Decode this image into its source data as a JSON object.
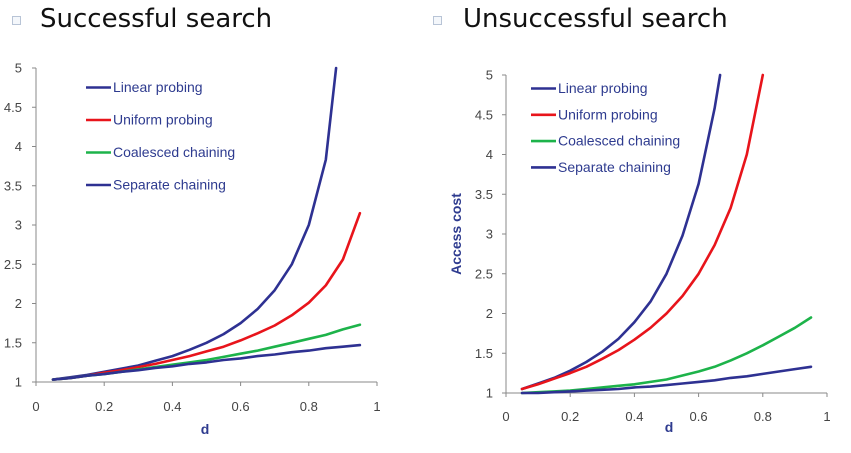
{
  "header": {
    "left_title": "Successful search",
    "right_title": "Unsuccessful search"
  },
  "chart_data": [
    {
      "type": "line",
      "title": "Successful search",
      "xlabel": "d",
      "ylabel": "",
      "xlim": [
        0,
        1
      ],
      "ylim": [
        1,
        5
      ],
      "xticks": [
        "0",
        "0.2",
        "0.4",
        "0.6",
        "0.8",
        "1"
      ],
      "yticks": [
        "1",
        "1.5",
        "2",
        "2.5",
        "3",
        "3.5",
        "4",
        "4.5",
        "5"
      ],
      "x": [
        0.05,
        0.1,
        0.15,
        0.2,
        0.25,
        0.3,
        0.35,
        0.4,
        0.45,
        0.5,
        0.55,
        0.6,
        0.65,
        0.7,
        0.75,
        0.8,
        0.85,
        0.9,
        0.95
      ],
      "legend_position": "top-left",
      "series": [
        {
          "name": "Linear probing",
          "color": "#2e3192",
          "x": [
            0.05,
            0.1,
            0.15,
            0.2,
            0.25,
            0.3,
            0.35,
            0.4,
            0.45,
            0.5,
            0.55,
            0.6,
            0.65,
            0.7,
            0.75,
            0.8,
            0.85,
            0.88
          ],
          "values": [
            1.03,
            1.06,
            1.09,
            1.13,
            1.17,
            1.21,
            1.27,
            1.33,
            1.41,
            1.5,
            1.61,
            1.75,
            1.93,
            2.17,
            2.5,
            3.0,
            3.83,
            5.0
          ]
        },
        {
          "name": "Uniform probing",
          "color": "#e8141b",
          "values": [
            1.03,
            1.05,
            1.08,
            1.12,
            1.15,
            1.19,
            1.23,
            1.28,
            1.33,
            1.39,
            1.45,
            1.53,
            1.62,
            1.72,
            1.85,
            2.01,
            2.23,
            2.56,
            3.15
          ]
        },
        {
          "name": "Coalesced chaining",
          "color": "#1db34a",
          "values": [
            1.03,
            1.05,
            1.08,
            1.1,
            1.13,
            1.16,
            1.19,
            1.22,
            1.25,
            1.28,
            1.32,
            1.36,
            1.4,
            1.45,
            1.5,
            1.55,
            1.6,
            1.67,
            1.73
          ]
        },
        {
          "name": "Separate chaining",
          "color": "#2e3192",
          "values": [
            1.03,
            1.05,
            1.08,
            1.1,
            1.13,
            1.15,
            1.18,
            1.2,
            1.23,
            1.25,
            1.28,
            1.3,
            1.33,
            1.35,
            1.38,
            1.4,
            1.43,
            1.45,
            1.47
          ]
        }
      ]
    },
    {
      "type": "line",
      "title": "Unsuccessful search",
      "xlabel": "d",
      "ylabel": "Access cost",
      "xlim": [
        0,
        1
      ],
      "ylim": [
        1,
        5
      ],
      "xticks": [
        "0",
        "0.2",
        "0.4",
        "0.6",
        "0.8",
        "1"
      ],
      "yticks": [
        "1",
        "1.5",
        "2",
        "2.5",
        "3",
        "3.5",
        "4",
        "4.5",
        "5"
      ],
      "legend_position": "top-left",
      "series": [
        {
          "name": "Linear probing",
          "color": "#2e3192",
          "x": [
            0.05,
            0.1,
            0.15,
            0.2,
            0.25,
            0.3,
            0.35,
            0.4,
            0.45,
            0.5,
            0.55,
            0.6,
            0.65,
            0.667
          ],
          "values": [
            1.05,
            1.12,
            1.19,
            1.28,
            1.39,
            1.52,
            1.68,
            1.89,
            2.15,
            2.5,
            2.98,
            3.63,
            4.58,
            5.0
          ]
        },
        {
          "name": "Uniform probing",
          "color": "#e8141b",
          "x": [
            0.05,
            0.1,
            0.15,
            0.2,
            0.25,
            0.3,
            0.35,
            0.4,
            0.45,
            0.5,
            0.55,
            0.6,
            0.65,
            0.7,
            0.75,
            0.8
          ],
          "values": [
            1.05,
            1.11,
            1.18,
            1.25,
            1.33,
            1.43,
            1.54,
            1.67,
            1.82,
            2.0,
            2.22,
            2.5,
            2.86,
            3.33,
            4.0,
            5.0
          ]
        },
        {
          "name": "Coalesced chaining",
          "color": "#1db34a",
          "x": [
            0.05,
            0.1,
            0.15,
            0.2,
            0.25,
            0.3,
            0.35,
            0.4,
            0.45,
            0.5,
            0.55,
            0.6,
            0.65,
            0.7,
            0.75,
            0.8,
            0.85,
            0.9,
            0.95
          ],
          "values": [
            1.0,
            1.01,
            1.02,
            1.03,
            1.05,
            1.07,
            1.09,
            1.11,
            1.14,
            1.17,
            1.22,
            1.27,
            1.33,
            1.41,
            1.5,
            1.6,
            1.71,
            1.82,
            1.95
          ]
        },
        {
          "name": "Separate chaining",
          "color": "#2e3192",
          "x": [
            0.05,
            0.1,
            0.15,
            0.2,
            0.25,
            0.3,
            0.35,
            0.4,
            0.45,
            0.5,
            0.55,
            0.6,
            0.65,
            0.7,
            0.75,
            0.8,
            0.85,
            0.9,
            0.95
          ],
          "values": [
            1.0,
            1.0,
            1.01,
            1.02,
            1.03,
            1.04,
            1.05,
            1.07,
            1.08,
            1.1,
            1.12,
            1.14,
            1.16,
            1.19,
            1.21,
            1.24,
            1.27,
            1.3,
            1.33
          ]
        }
      ]
    }
  ]
}
